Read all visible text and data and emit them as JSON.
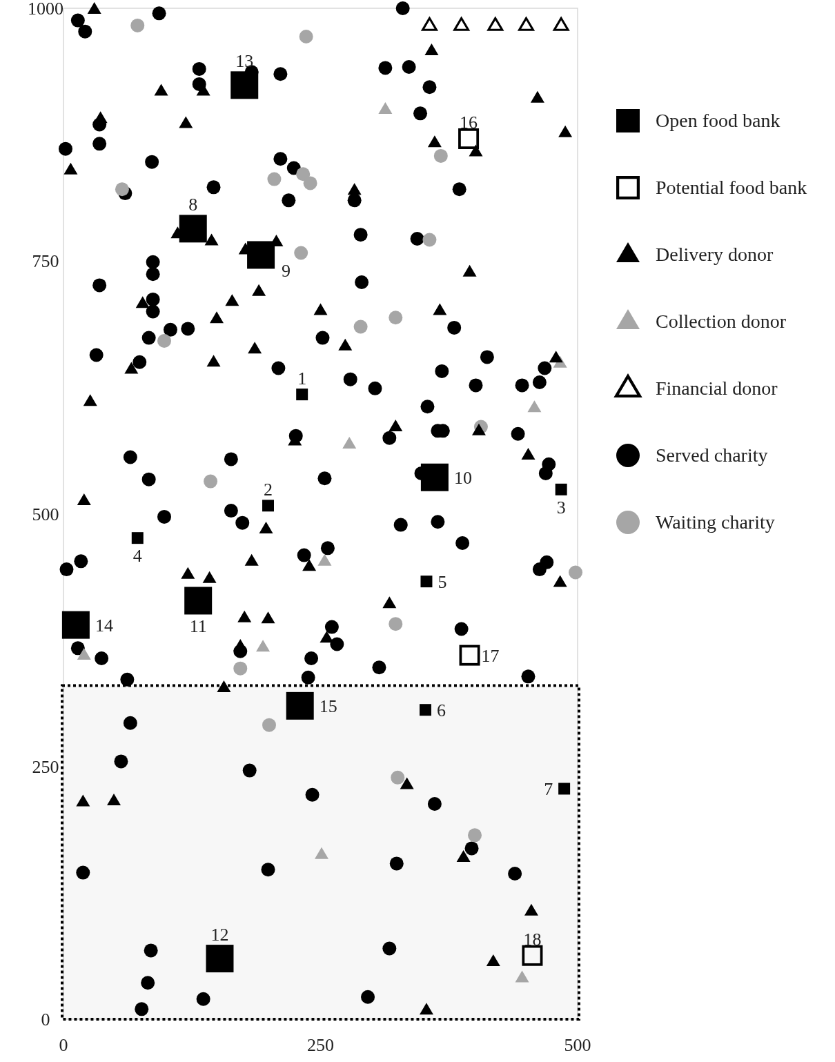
{
  "chart_data": {
    "type": "scatter",
    "xlim": [
      0,
      500
    ],
    "xticks": [
      0,
      250,
      500
    ],
    "ylim": [
      0,
      1000
    ],
    "yticks": [
      0,
      250,
      500,
      750,
      1000
    ],
    "grid": false,
    "legend": "right",
    "bands": [
      {
        "axis": "y",
        "from": 0,
        "to": 330,
        "color": "#000000"
      }
    ],
    "series": [
      {
        "name": "Open food bank",
        "type": "bubble",
        "marker": "square",
        "color": "#000000",
        "x": [
          232,
          199,
          484,
          72,
          353,
          352,
          487,
          126,
          192,
          361,
          131,
          152,
          176,
          12,
          230
        ],
        "values": [
          618,
          508,
          524,
          476,
          433,
          306,
          228,
          782,
          756,
          536,
          414,
          60,
          924,
          390,
          310
        ],
        "sizes": [
          0.18,
          0.18,
          0.18,
          0.18,
          0.18,
          0.18,
          0.18,
          1,
          1,
          1,
          1,
          1,
          1,
          1,
          1
        ]
      },
      {
        "name": "Potential food bank",
        "marker": "square",
        "color": "#000000",
        "x": [
          394,
          395,
          456
        ],
        "values": [
          871,
          360,
          63
        ]
      },
      {
        "name": "Delivery donor",
        "marker": "triangle",
        "color": "#000000",
        "x": [
          30,
          95,
          136,
          36,
          119,
          7,
          111,
          144,
          177,
          207,
          190,
          164,
          149,
          77,
          66,
          146,
          186,
          250,
          274,
          283,
          26,
          225,
          323,
          366,
          361,
          401,
          358,
          395,
          404,
          452,
          461,
          488,
          479,
          20,
          121,
          142,
          176,
          199,
          197,
          183,
          239,
          483,
          317,
          256,
          172,
          156,
          19,
          49,
          334,
          389,
          455,
          418,
          353
        ],
        "values": [
          999,
          918,
          918,
          891,
          886,
          840,
          777,
          770,
          761,
          769,
          720,
          710,
          693,
          708,
          643,
          650,
          663,
          701,
          666,
          820,
          611,
          572,
          586,
          701,
          867,
          858,
          958,
          739,
          582,
          558,
          911,
          877,
          654,
          513,
          440,
          436,
          397,
          396,
          485,
          453,
          448,
          432,
          411,
          377,
          369,
          328,
          215,
          216,
          232,
          160,
          107,
          57,
          9
        ]
      },
      {
        "name": "Collection donor",
        "marker": "triangle",
        "color": "#a6a6a6",
        "x": [
          313,
          458,
          483,
          278,
          254,
          194,
          20,
          251,
          446
        ],
        "values": [
          900,
          605,
          649,
          569,
          453,
          368,
          360,
          163,
          41
        ]
      },
      {
        "name": "Financial donor",
        "marker": "triangle",
        "color": "#000000",
        "x": [
          356,
          387,
          420,
          450,
          484
        ],
        "values": [
          983,
          983,
          983,
          983,
          983
        ]
      },
      {
        "name": "Served charity",
        "marker": "circle",
        "color": "#000000",
        "x": [
          14,
          21,
          93,
          132,
          132,
          183,
          211,
          35,
          35,
          2,
          86,
          146,
          60,
          211,
          224,
          219,
          87,
          87,
          35,
          87,
          87,
          104,
          121,
          83,
          330,
          313,
          336,
          356,
          347,
          385,
          283,
          289,
          344,
          290,
          380,
          252,
          32,
          74,
          209,
          226,
          65,
          163,
          83,
          163,
          174,
          98,
          3,
          17,
          234,
          14,
          37,
          172,
          241,
          238,
          62,
          279,
          303,
          368,
          412,
          401,
          446,
          463,
          468,
          354,
          317,
          364,
          369,
          442,
          254,
          348,
          472,
          469,
          328,
          364,
          388,
          257,
          463,
          470,
          261,
          266,
          387,
          307,
          452,
          65,
          56,
          181,
          242,
          19,
          199,
          85,
          82,
          136,
          76,
          361,
          397,
          324,
          439,
          317,
          296
        ],
        "values": [
          988,
          977,
          995,
          940,
          925,
          937,
          935,
          885,
          866,
          861,
          848,
          823,
          817,
          851,
          842,
          810,
          749,
          737,
          726,
          712,
          700,
          682,
          683,
          674,
          1000,
          941,
          942,
          922,
          896,
          821,
          810,
          776,
          772,
          729,
          684,
          674,
          657,
          650,
          644,
          577,
          556,
          554,
          534,
          503,
          491,
          497,
          445,
          453,
          459,
          367,
          357,
          364,
          357,
          338,
          336,
          633,
          624,
          641,
          655,
          627,
          627,
          630,
          644,
          606,
          575,
          582,
          582,
          579,
          535,
          540,
          549,
          540,
          489,
          492,
          471,
          466,
          445,
          452,
          388,
          371,
          386,
          348,
          339,
          293,
          255,
          246,
          222,
          145,
          148,
          68,
          36,
          20,
          10,
          213,
          169,
          154,
          144,
          70,
          22
        ]
      },
      {
        "name": "Waiting charity",
        "marker": "circle",
        "color": "#a6a6a6",
        "x": [
          72,
          236,
          57,
          205,
          233,
          240,
          367,
          231,
          356,
          289,
          323,
          98,
          406,
          143,
          498,
          323,
          172,
          200,
          325,
          400
        ],
        "values": [
          983,
          972,
          821,
          831,
          836,
          827,
          854,
          758,
          771,
          685,
          694,
          671,
          586,
          532,
          442,
          391,
          347,
          291,
          239,
          182
        ]
      }
    ],
    "annotations": [
      {
        "text": "1",
        "x": 232,
        "y": 618
      },
      {
        "text": "2",
        "x": 199,
        "y": 508
      },
      {
        "text": "3",
        "x": 484,
        "y": 524
      },
      {
        "text": "4",
        "x": 72,
        "y": 476
      },
      {
        "text": "5",
        "x": 353,
        "y": 433
      },
      {
        "text": "6",
        "x": 352,
        "y": 306
      },
      {
        "text": "7",
        "x": 487,
        "y": 228
      },
      {
        "text": "8",
        "x": 126,
        "y": 782
      },
      {
        "text": "9",
        "x": 192,
        "y": 756
      },
      {
        "text": "10",
        "x": 361,
        "y": 536
      },
      {
        "text": "11",
        "x": 131,
        "y": 414
      },
      {
        "text": "12",
        "x": 152,
        "y": 60
      },
      {
        "text": "13",
        "x": 176,
        "y": 924
      },
      {
        "text": "14",
        "x": 12,
        "y": 390
      },
      {
        "text": "15",
        "x": 230,
        "y": 310
      },
      {
        "text": "16",
        "x": 394,
        "y": 871
      },
      {
        "text": "17",
        "x": 395,
        "y": 360
      },
      {
        "text": "18",
        "x": 456,
        "y": 63
      }
    ]
  }
}
